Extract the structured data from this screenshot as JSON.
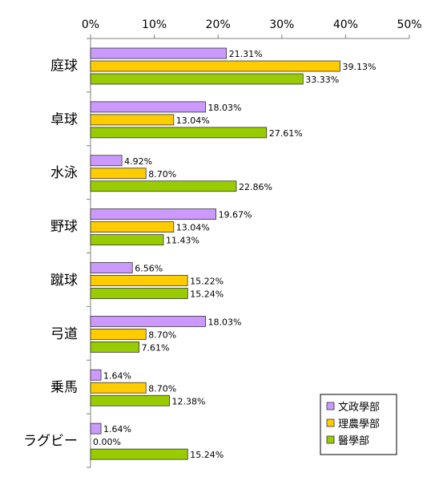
{
  "chart_data": {
    "type": "bar",
    "orientation": "horizontal",
    "categories": [
      "庭球",
      "卓球",
      "水泳",
      "野球",
      "蹴球",
      "弓道",
      "乗馬",
      "ラグビー"
    ],
    "series": [
      {
        "name": "文政學部",
        "color": "#cc99ff",
        "values": [
          21.31,
          18.03,
          4.92,
          19.67,
          6.56,
          18.03,
          1.64,
          1.64
        ],
        "labels": [
          "21.31%",
          "18.03%",
          "4.92%",
          "19.67%",
          "6.56%",
          "18.03%",
          "1.64%",
          "1.64%"
        ]
      },
      {
        "name": "理農學部",
        "color": "#ffcc00",
        "values": [
          39.13,
          13.04,
          8.7,
          13.04,
          15.22,
          8.7,
          8.7,
          0.0
        ],
        "labels": [
          "39.13%",
          "13.04%",
          "8.70%",
          "13.04%",
          "15.22%",
          "8.70%",
          "8.70%",
          "0.00%"
        ]
      },
      {
        "name": "醫學部",
        "color": "#99cc00",
        "values": [
          33.33,
          27.61,
          22.86,
          11.43,
          15.24,
          7.61,
          12.38,
          15.24
        ],
        "labels": [
          "33.33%",
          "27.61%",
          "22.86%",
          "11.43%",
          "15.24%",
          "7.61%",
          "12.38%",
          "15.24%"
        ]
      }
    ],
    "x_ticks": [
      "0%",
      "10%",
      "20%",
      "30%",
      "40%",
      "50%"
    ],
    "xlim": [
      0,
      50
    ],
    "xaxis_position": "top",
    "grid": false,
    "legend_position": "bottom-right"
  }
}
